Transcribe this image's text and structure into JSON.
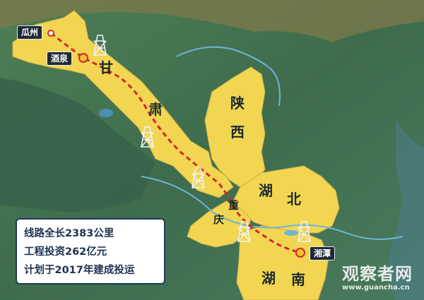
{
  "cities": {
    "guazhou": "瓜州",
    "jiuquan": "酒泉",
    "xiangtan": "湘潭"
  },
  "provinces": {
    "gan": [
      "甘",
      "肃"
    ],
    "shaanxi": [
      "陕",
      "西"
    ],
    "chongqing": [
      "重",
      "庆"
    ],
    "hubei": [
      "湖",
      "北"
    ],
    "hunan": [
      "湖",
      "南"
    ]
  },
  "info_box": {
    "line1": "线路全长2383公里",
    "line2": "工程投资262亿元",
    "line3": "计划于2017年建成投运"
  },
  "watermark": {
    "name": "观察者网",
    "url": "www.guancha.cn"
  },
  "colors": {
    "province_fill": "#f2d651",
    "route": "#d6252a",
    "terrain": "#3f6e52",
    "info_text": "#1d3350"
  }
}
